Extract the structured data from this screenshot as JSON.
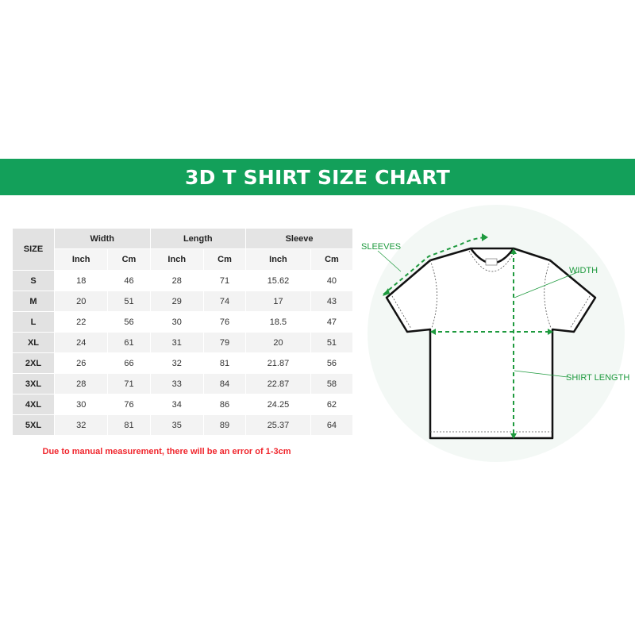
{
  "title": "3D T SHIRT SIZE CHART",
  "table": {
    "size_header": "SIZE",
    "groups": [
      "Width",
      "Length",
      "Sleeve"
    ],
    "units": [
      "Inch",
      "Cm",
      "Inch",
      "Cm",
      "Inch",
      "Cm"
    ],
    "rows": [
      {
        "size": "S",
        "values": [
          "18",
          "46",
          "28",
          "71",
          "15.62",
          "40"
        ]
      },
      {
        "size": "M",
        "values": [
          "20",
          "51",
          "29",
          "74",
          "17",
          "43"
        ]
      },
      {
        "size": "L",
        "values": [
          "22",
          "56",
          "30",
          "76",
          "18.5",
          "47"
        ]
      },
      {
        "size": "XL",
        "values": [
          "24",
          "61",
          "31",
          "79",
          "20",
          "51"
        ]
      },
      {
        "size": "2XL",
        "values": [
          "26",
          "66",
          "32",
          "81",
          "21.87",
          "56"
        ]
      },
      {
        "size": "3XL",
        "values": [
          "28",
          "71",
          "33",
          "84",
          "22.87",
          "58"
        ]
      },
      {
        "size": "4XL",
        "values": [
          "30",
          "76",
          "34",
          "86",
          "24.25",
          "62"
        ]
      },
      {
        "size": "5XL",
        "values": [
          "32",
          "81",
          "35",
          "89",
          "25.37",
          "64"
        ]
      }
    ]
  },
  "note": "Due to manual measurement, there will be an error of 1-3cm",
  "diagram": {
    "labels": {
      "sleeves": "SLEEVES",
      "width": "WIDTH",
      "length": "SHIRT LENGTH"
    },
    "accent_color": "#1e9a3e"
  },
  "colors": {
    "banner": "#13a05a",
    "note": "#f0262d"
  }
}
